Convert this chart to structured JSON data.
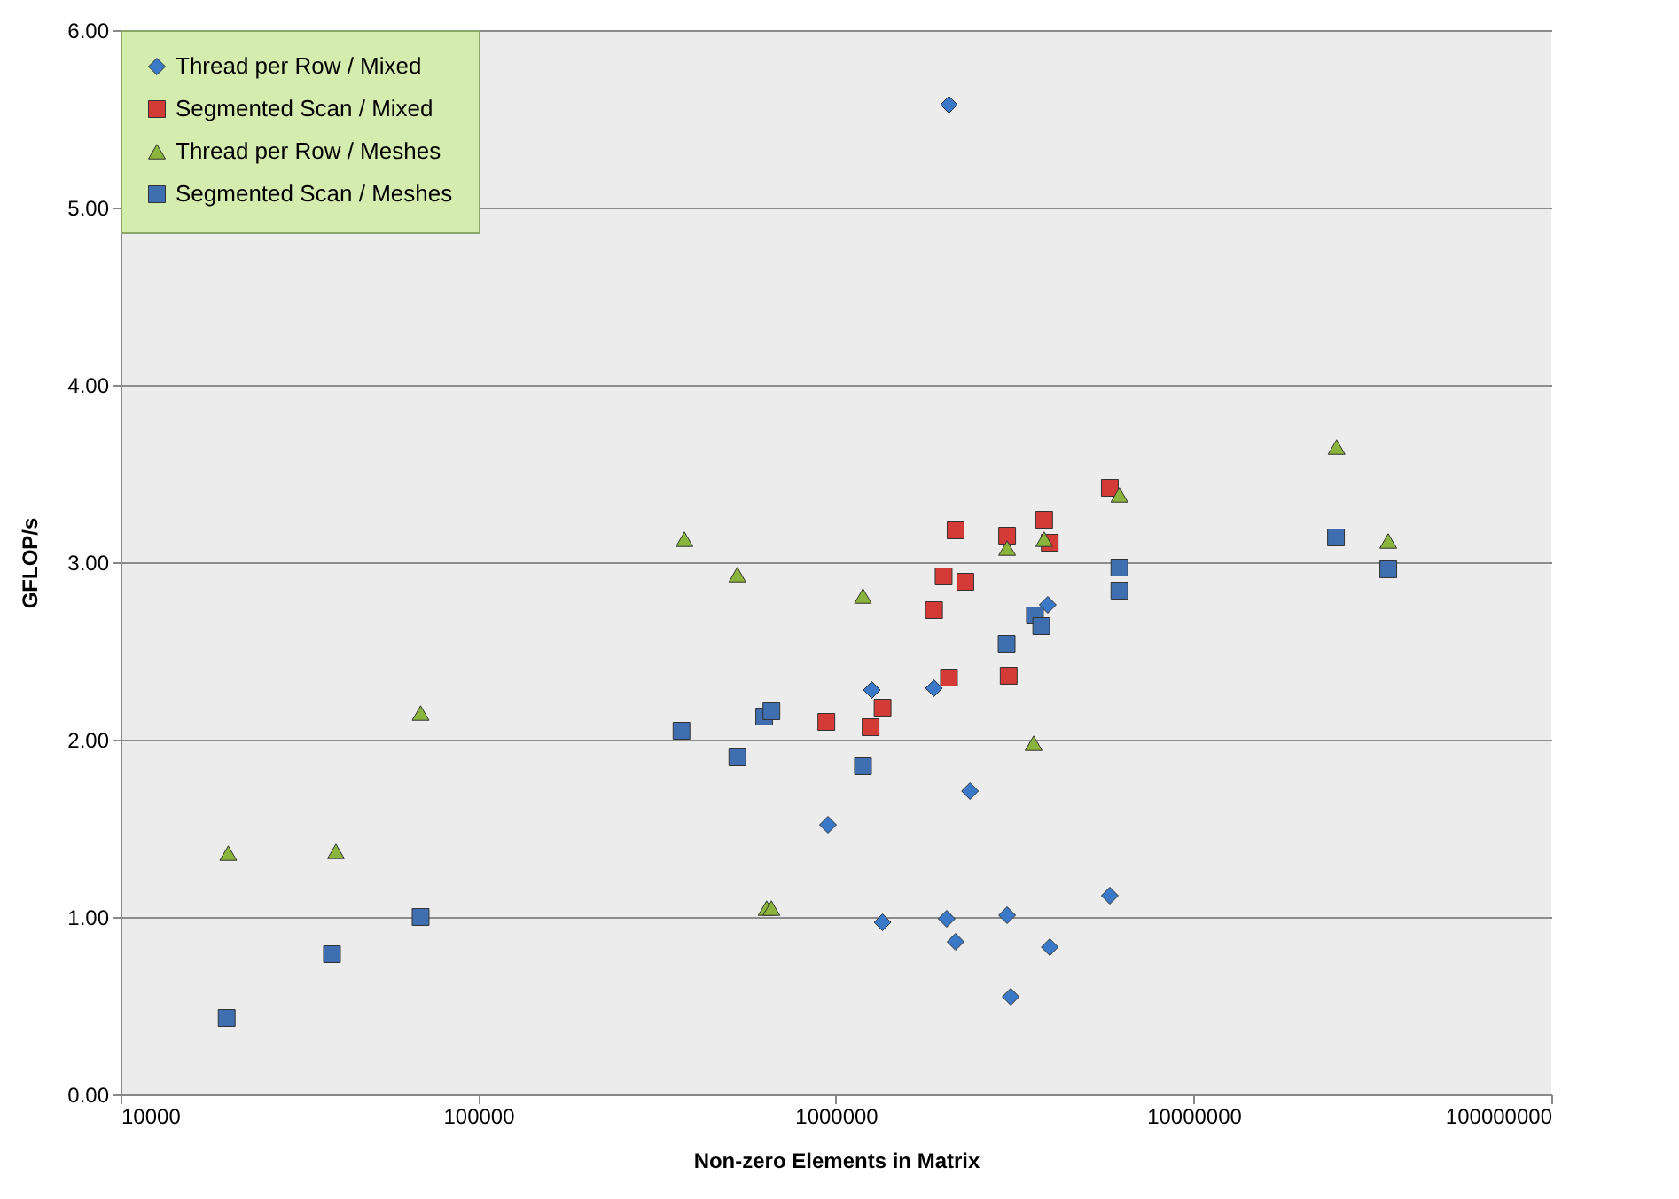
{
  "chart_data": {
    "type": "scatter",
    "xlabel": "Non-zero Elements in Matrix",
    "ylabel": "GFLOP/s",
    "log": "x",
    "grid": "y",
    "legend": "top left",
    "xlim": [
      10000,
      100000000
    ],
    "xticks": [
      10000,
      100000,
      1000000,
      10000000,
      100000000
    ],
    "ylim": [
      0,
      6
    ],
    "yticks": [
      {
        "value": 0,
        "label": "0.00"
      },
      {
        "value": 1,
        "label": "1.00"
      },
      {
        "value": 2,
        "label": "2.00"
      },
      {
        "value": 3,
        "label": "3.00"
      },
      {
        "value": 4,
        "label": "4.00"
      },
      {
        "value": 5,
        "label": "5.00"
      },
      {
        "value": 6,
        "label": "6.00"
      }
    ],
    "series": [
      {
        "name": "Thread per Row / Mixed",
        "color": "#3a78c8",
        "marker": "diamond",
        "x": [
          2070000,
          1260000,
          1880000,
          3910000,
          2370000,
          950000,
          1350000,
          2040000,
          2160000,
          3010000,
          3960000,
          3080000,
          5830000
        ],
        "values": [
          5.58,
          2.28,
          2.29,
          2.76,
          1.71,
          1.52,
          0.97,
          0.99,
          0.86,
          1.01,
          0.83,
          0.55,
          1.12
        ]
      },
      {
        "name": "Segmented Scan / Mixed",
        "color": "#d43a36",
        "marker": "square",
        "x": [
          5830000,
          2160000,
          3820000,
          3960000,
          3010000,
          2000000,
          2300000,
          1880000,
          2070000,
          3040000,
          1350000,
          940000,
          1250000
        ],
        "values": [
          3.42,
          3.18,
          3.24,
          3.11,
          3.15,
          2.92,
          2.89,
          2.73,
          2.35,
          2.36,
          2.18,
          2.1,
          2.07
        ]
      },
      {
        "name": "Thread per Row / Meshes",
        "color": "#8ab43c",
        "marker": "triangle",
        "x": [
          20000,
          40000,
          69000,
          377000,
          530000,
          1190000,
          640000,
          660000,
          3570000,
          3010000,
          3820000,
          6200000,
          25100000,
          35000000
        ],
        "values": [
          1.36,
          1.37,
          2.15,
          3.13,
          2.93,
          2.81,
          1.05,
          1.05,
          1.98,
          3.08,
          3.13,
          3.38,
          3.65,
          3.12
        ]
      },
      {
        "name": "Segmented Scan / Meshes",
        "color": "#3f6fb0",
        "marker": "square",
        "x": [
          19800,
          39000,
          69000,
          370000,
          530000,
          630000,
          660000,
          1190000,
          3000000,
          3600000,
          3750000,
          6200000,
          6200000,
          25000000,
          35000000
        ],
        "values": [
          0.43,
          0.79,
          1.0,
          2.05,
          1.9,
          2.13,
          2.16,
          1.85,
          2.54,
          2.7,
          2.64,
          2.97,
          2.84,
          3.14,
          2.96
        ]
      }
    ]
  }
}
